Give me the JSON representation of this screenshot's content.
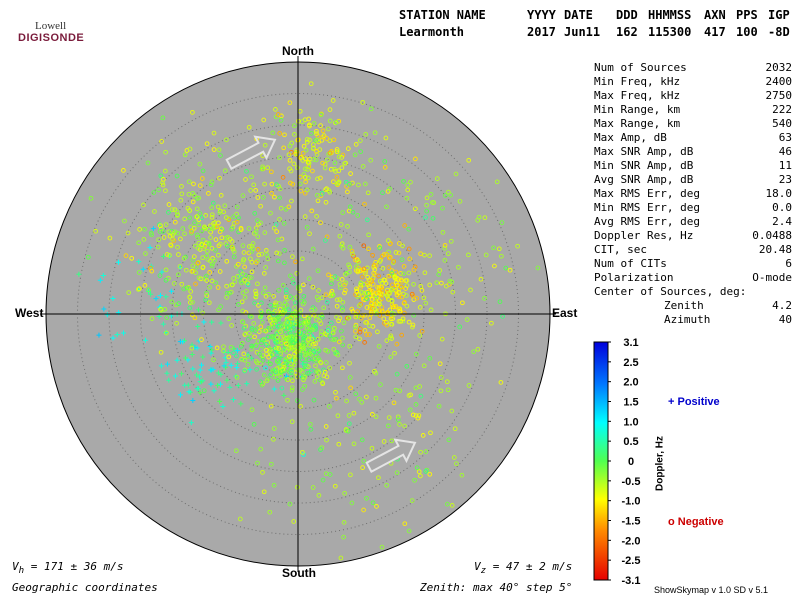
{
  "logo": {
    "line1": "Lowell",
    "line2": "DIGISONDE"
  },
  "header": {
    "labels": [
      "STATION NAME",
      "YYYY",
      "DATE",
      "DDD",
      "HHMMSS",
      "AXN",
      "PPS",
      "IGP"
    ],
    "values": [
      "Learmonth",
      "2017",
      "Jun11",
      "162",
      "115300",
      "417",
      "100",
      "-8D"
    ]
  },
  "stats": [
    {
      "label": "Num of Sources",
      "value": "2032"
    },
    {
      "label": "Min Freq, kHz",
      "value": "2400"
    },
    {
      "label": "Max Freq, kHz",
      "value": "2750"
    },
    {
      "label": "Min Range, km",
      "value": "222"
    },
    {
      "label": "Max Range, km",
      "value": "540"
    },
    {
      "label": "Max Amp, dB",
      "value": "63"
    },
    {
      "label": "Max SNR Amp, dB",
      "value": "46"
    },
    {
      "label": "Min SNR Amp, dB",
      "value": "11"
    },
    {
      "label": "Avg SNR Amp, dB",
      "value": "23"
    },
    {
      "label": "Max RMS Err, deg",
      "value": "18.0"
    },
    {
      "label": "Min RMS Err, deg",
      "value": "0.0"
    },
    {
      "label": "Avg RMS Err, deg",
      "value": "2.4"
    },
    {
      "label": "Doppler Res, Hz",
      "value": "0.0488"
    },
    {
      "label": "CIT, sec",
      "value": "20.48"
    },
    {
      "label": "Num of CITs",
      "value": "6"
    },
    {
      "label": "Polarization",
      "value": "O-mode"
    }
  ],
  "center": {
    "title": "Center of Sources, deg:",
    "zenith_label": "Zenith",
    "zenith": "4.2",
    "azimuth_label": "Azimuth",
    "azimuth": "40"
  },
  "directions": {
    "north": "North",
    "south": "South",
    "east": "East",
    "west": "West"
  },
  "legend": {
    "positive": "+ Positive",
    "negative": "o Negative"
  },
  "colorbar": {
    "label": "Doppler, Hz",
    "ticks": [
      "3.1",
      "2.5",
      "2.0",
      "1.5",
      "1.0",
      "0.5",
      "0",
      "-0.5",
      "-1.0",
      "-1.5",
      "-2.0",
      "-2.5",
      "-3.1"
    ]
  },
  "bottom": {
    "vh": "V",
    "vh_sub": "h",
    "vh_value": " = 171 ± 36 m/s",
    "vz": "V",
    "vz_sub": "z",
    "vz_value": " = 47 ± 2 m/s",
    "coords": "Geographic coordinates",
    "zenith_note": "Zenith: max 40°  step 5°",
    "version": "ShowSkymap v 1.0   SD v 5.1"
  },
  "colors": {
    "disk": "#a9a9a9",
    "grid": "#6e6e6e",
    "arrow": "#e4e4e4"
  },
  "chart_data": {
    "type": "scatter",
    "projection": "polar skymap (zenith angle vs azimuth)",
    "zenith_max_deg": 40,
    "zenith_step_deg": 5,
    "azimuth_labels": [
      "North",
      "East",
      "South",
      "West"
    ],
    "colorbar_range_hz": [
      -3.1,
      3.1
    ],
    "series": [
      {
        "name": "Positive",
        "marker": "+",
        "clusters": [
          {
            "azimuth_deg": 240,
            "zenith_deg": 17,
            "count": 70,
            "spread_deg": 3.5,
            "doppler": 0.6
          },
          {
            "azimuth_deg": 275,
            "zenith_deg": 24,
            "count": 40,
            "spread_deg": 5,
            "doppler": 0.9
          },
          {
            "azimuth_deg": 200,
            "zenith_deg": 8,
            "count": 30,
            "spread_deg": 3,
            "doppler": 0.3
          }
        ]
      },
      {
        "name": "Negative",
        "marker": "o",
        "clusters": [
          {
            "azimuth_deg": 75,
            "zenith_deg": 13,
            "count": 280,
            "spread_deg": 3.5,
            "doppler": -1.1
          },
          {
            "azimuth_deg": 5,
            "zenith_deg": 25,
            "count": 160,
            "spread_deg": 4,
            "doppler": -0.9
          },
          {
            "azimuth_deg": 310,
            "zenith_deg": 18,
            "count": 380,
            "spread_deg": 6.5,
            "doppler": -0.6
          },
          {
            "azimuth_deg": 200,
            "zenith_deg": 4,
            "count": 520,
            "spread_deg": 4,
            "doppler": -0.3
          },
          {
            "azimuth_deg": 150,
            "zenith_deg": 22,
            "count": 150,
            "spread_deg": 9,
            "doppler": -0.5
          },
          {
            "azimuth_deg": 60,
            "zenith_deg": 22,
            "count": 140,
            "spread_deg": 9,
            "doppler": -0.5
          }
        ]
      }
    ],
    "flow_arrows_azimuth_deg": [
      60,
      60
    ]
  }
}
